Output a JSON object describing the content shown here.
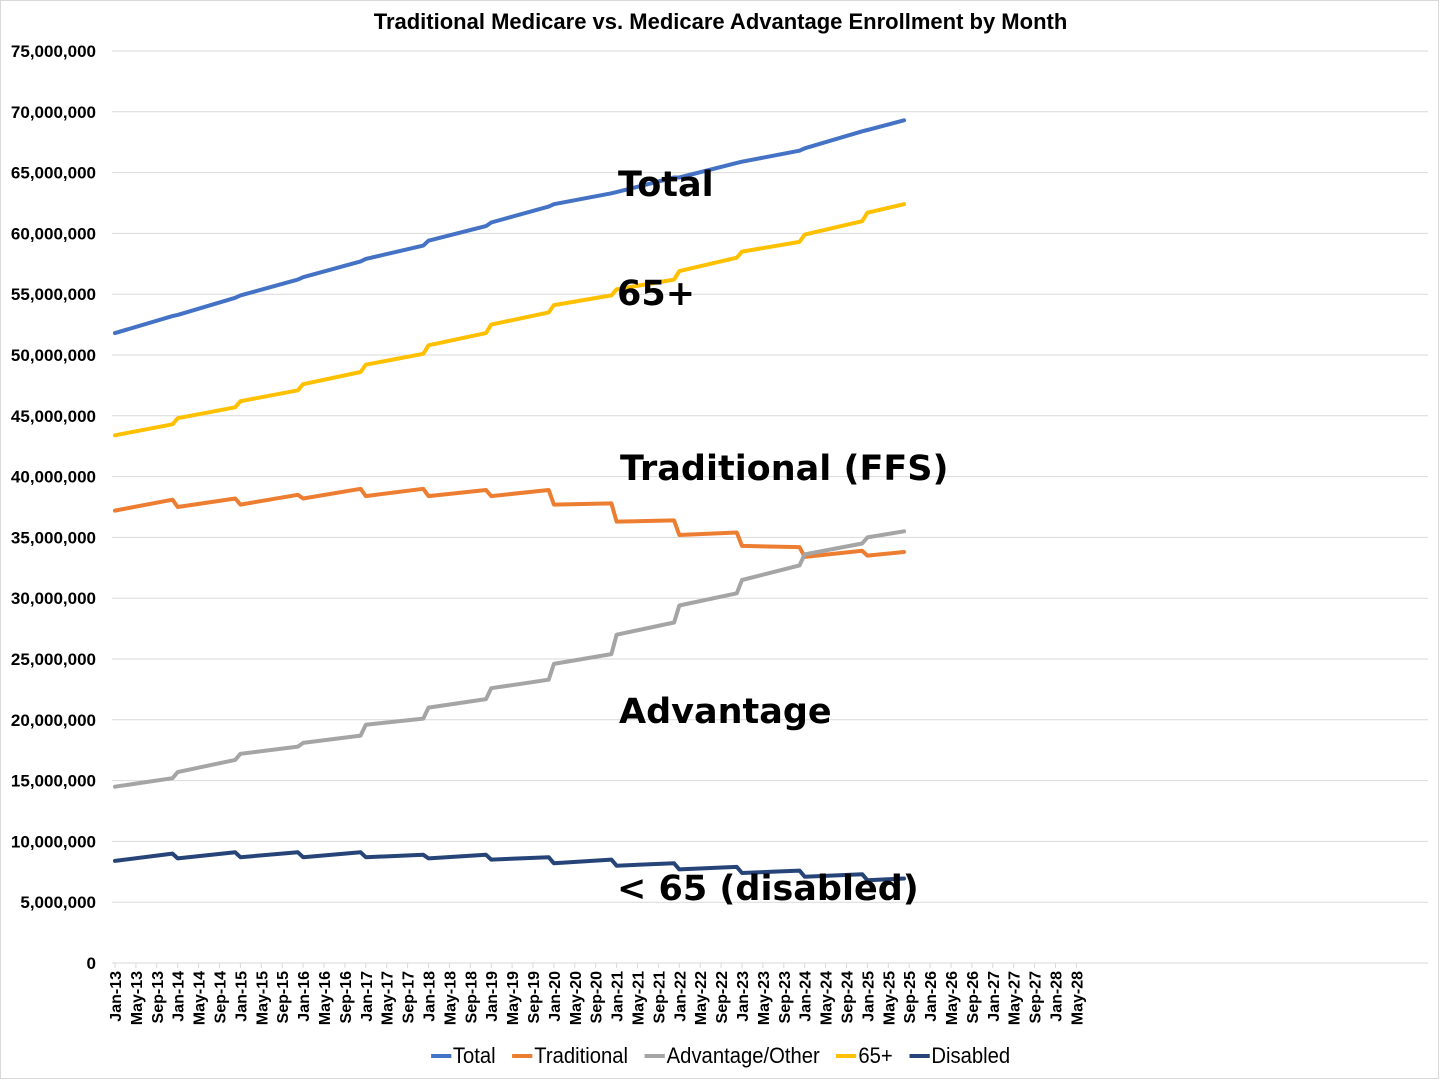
{
  "chart_data": {
    "type": "line",
    "title": "Traditional Medicare vs. Medicare Advantage Enrollment by Month",
    "xlabel": "",
    "ylabel": "",
    "ylim": [
      0,
      75000000
    ],
    "y_ticks": [
      0,
      5000000,
      10000000,
      15000000,
      20000000,
      25000000,
      30000000,
      35000000,
      40000000,
      45000000,
      50000000,
      55000000,
      60000000,
      65000000,
      70000000,
      75000000
    ],
    "y_tick_labels": [
      "0",
      "5,000,000",
      "10,000,000",
      "15,000,000",
      "20,000,000",
      "25,000,000",
      "30,000,000",
      "35,000,000",
      "40,000,000",
      "45,000,000",
      "50,000,000",
      "55,000,000",
      "60,000,000",
      "65,000,000",
      "70,000,000",
      "75,000,000"
    ],
    "x_range": [
      "Jan-13",
      "Aug-28"
    ],
    "x_tick_labels": [
      "Jan-13",
      "May-13",
      "Sep-13",
      "Jan-14",
      "May-14",
      "Sep-14",
      "Jan-15",
      "May-15",
      "Sep-15",
      "Jan-16",
      "May-16",
      "Sep-16",
      "Jan-17",
      "May-17",
      "Sep-17",
      "Jan-18",
      "May-18",
      "Sep-18",
      "Jan-19",
      "May-19",
      "Sep-19",
      "Jan-20",
      "May-20",
      "Sep-20",
      "Jan-21",
      "May-21",
      "Sep-21",
      "Jan-22",
      "May-22",
      "Sep-22",
      "Jan-23",
      "May-23",
      "Sep-23",
      "Jan-24",
      "May-24",
      "Sep-24",
      "Jan-25",
      "May-25",
      "Sep-25",
      "Jan-26",
      "May-26",
      "Sep-26",
      "Jan-27",
      "May-27",
      "Sep-27",
      "Jan-28",
      "May-28"
    ],
    "grid": true,
    "legend_position": "bottom",
    "x_unit": "months since Jan-13",
    "series": [
      {
        "name": "Total",
        "color": "#4472c4",
        "points": [
          [
            0,
            51800000
          ],
          [
            11,
            53200000
          ],
          [
            12,
            53300000
          ],
          [
            23,
            54700000
          ],
          [
            24,
            54900000
          ],
          [
            35,
            56200000
          ],
          [
            36,
            56400000
          ],
          [
            47,
            57700000
          ],
          [
            48,
            57900000
          ],
          [
            59,
            59000000
          ],
          [
            60,
            59400000
          ],
          [
            71,
            60600000
          ],
          [
            72,
            60900000
          ],
          [
            83,
            62200000
          ],
          [
            84,
            62400000
          ],
          [
            95,
            63300000
          ],
          [
            96,
            63400000
          ],
          [
            107,
            64600000
          ],
          [
            108,
            64600000
          ],
          [
            119,
            65800000
          ],
          [
            120,
            65900000
          ],
          [
            131,
            66800000
          ],
          [
            132,
            67000000
          ],
          [
            143,
            68400000
          ],
          [
            144,
            68500000
          ],
          [
            151,
            69300000
          ]
        ]
      },
      {
        "name": "Traditional",
        "color": "#ed7d31",
        "points": [
          [
            0,
            37200000
          ],
          [
            11,
            38100000
          ],
          [
            12,
            37500000
          ],
          [
            23,
            38200000
          ],
          [
            24,
            37700000
          ],
          [
            35,
            38500000
          ],
          [
            36,
            38200000
          ],
          [
            47,
            39000000
          ],
          [
            48,
            38400000
          ],
          [
            59,
            39000000
          ],
          [
            60,
            38400000
          ],
          [
            71,
            38900000
          ],
          [
            72,
            38400000
          ],
          [
            83,
            38900000
          ],
          [
            84,
            37700000
          ],
          [
            95,
            37800000
          ],
          [
            96,
            36300000
          ],
          [
            107,
            36400000
          ],
          [
            108,
            35200000
          ],
          [
            119,
            35400000
          ],
          [
            120,
            34300000
          ],
          [
            131,
            34200000
          ],
          [
            132,
            33400000
          ],
          [
            143,
            33900000
          ],
          [
            144,
            33500000
          ],
          [
            151,
            33800000
          ]
        ]
      },
      {
        "name": "Advantage/Other",
        "color": "#a5a5a5",
        "points": [
          [
            0,
            14500000
          ],
          [
            11,
            15200000
          ],
          [
            12,
            15700000
          ],
          [
            23,
            16700000
          ],
          [
            24,
            17200000
          ],
          [
            35,
            17800000
          ],
          [
            36,
            18100000
          ],
          [
            47,
            18700000
          ],
          [
            48,
            19600000
          ],
          [
            59,
            20100000
          ],
          [
            60,
            21000000
          ],
          [
            71,
            21700000
          ],
          [
            72,
            22600000
          ],
          [
            83,
            23300000
          ],
          [
            84,
            24600000
          ],
          [
            95,
            25400000
          ],
          [
            96,
            27000000
          ],
          [
            107,
            28000000
          ],
          [
            108,
            29400000
          ],
          [
            119,
            30400000
          ],
          [
            120,
            31500000
          ],
          [
            131,
            32700000
          ],
          [
            132,
            33600000
          ],
          [
            143,
            34500000
          ],
          [
            144,
            35000000
          ],
          [
            151,
            35500000
          ]
        ]
      },
      {
        "name": "65+",
        "color": "#ffc000",
        "points": [
          [
            0,
            43400000
          ],
          [
            11,
            44300000
          ],
          [
            12,
            44800000
          ],
          [
            23,
            45700000
          ],
          [
            24,
            46200000
          ],
          [
            35,
            47100000
          ],
          [
            36,
            47600000
          ],
          [
            47,
            48600000
          ],
          [
            48,
            49200000
          ],
          [
            59,
            50100000
          ],
          [
            60,
            50800000
          ],
          [
            71,
            51800000
          ],
          [
            72,
            52500000
          ],
          [
            83,
            53500000
          ],
          [
            84,
            54100000
          ],
          [
            95,
            54900000
          ],
          [
            96,
            55400000
          ],
          [
            107,
            56200000
          ],
          [
            108,
            56900000
          ],
          [
            119,
            58000000
          ],
          [
            120,
            58500000
          ],
          [
            131,
            59300000
          ],
          [
            132,
            59900000
          ],
          [
            143,
            61000000
          ],
          [
            144,
            61700000
          ],
          [
            151,
            62400000
          ]
        ]
      },
      {
        "name": "Disabled",
        "color": "#264478",
        "points": [
          [
            0,
            8400000
          ],
          [
            11,
            9000000
          ],
          [
            12,
            8600000
          ],
          [
            23,
            9100000
          ],
          [
            24,
            8700000
          ],
          [
            35,
            9100000
          ],
          [
            36,
            8700000
          ],
          [
            47,
            9100000
          ],
          [
            48,
            8700000
          ],
          [
            59,
            8900000
          ],
          [
            60,
            8600000
          ],
          [
            71,
            8900000
          ],
          [
            72,
            8500000
          ],
          [
            83,
            8700000
          ],
          [
            84,
            8200000
          ],
          [
            95,
            8500000
          ],
          [
            96,
            8000000
          ],
          [
            107,
            8200000
          ],
          [
            108,
            7700000
          ],
          [
            119,
            7900000
          ],
          [
            120,
            7400000
          ],
          [
            131,
            7600000
          ],
          [
            132,
            7100000
          ],
          [
            143,
            7300000
          ],
          [
            144,
            6800000
          ],
          [
            151,
            6950000
          ]
        ]
      }
    ],
    "annotations": [
      {
        "text": "Total",
        "series": "Total"
      },
      {
        "text": "65+",
        "series": "65+"
      },
      {
        "text": "Traditional (FFS)",
        "series": "Traditional"
      },
      {
        "text": "Advantage",
        "series": "Advantage/Other"
      },
      {
        "text": "< 65 (disabled)",
        "series": "Disabled"
      }
    ]
  }
}
